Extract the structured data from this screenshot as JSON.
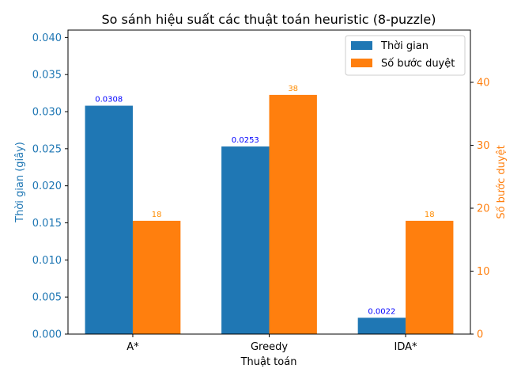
{
  "chart_data": {
    "type": "bar",
    "title": "So sánh hiệu suất các thuật toán heuristic (8-puzzle)",
    "xlabel": "Thuật toán",
    "categories": [
      "A*",
      "Greedy",
      "IDA*"
    ],
    "left_axis": {
      "label": "Thời gian (giây)",
      "ylim": [
        0,
        0.041
      ],
      "ticks": [
        "0.000",
        "0.005",
        "0.010",
        "0.015",
        "0.020",
        "0.025",
        "0.030",
        "0.035",
        "0.040"
      ]
    },
    "right_axis": {
      "label": "Số bước duyệt",
      "ylim": [
        0,
        48.3
      ],
      "ticks": [
        "0",
        "10",
        "20",
        "30",
        "40"
      ]
    },
    "series": [
      {
        "name": "Thời gian",
        "axis": "left",
        "color": "#1f77b4",
        "label_color": "#0000ff",
        "values": [
          0.0308,
          0.0253,
          0.0022
        ],
        "labels": [
          "0.0308",
          "0.0253",
          "0.0022"
        ]
      },
      {
        "name": "Số bước duyệt",
        "axis": "right",
        "color": "#ff7f0e",
        "label_color": "#ff8c00",
        "values": [
          18,
          38,
          18
        ],
        "labels": [
          "18",
          "38",
          "18"
        ]
      }
    ],
    "legend": "top-right",
    "grid": false
  }
}
